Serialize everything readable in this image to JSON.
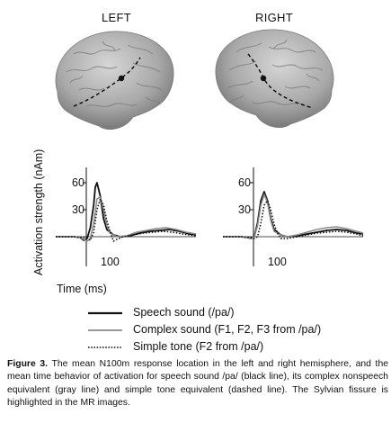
{
  "figure": {
    "hemispheres": [
      {
        "id": "left",
        "label": "LEFT",
        "y_tick_60": "60",
        "y_tick_30": "30",
        "x_tick": "100"
      },
      {
        "id": "right",
        "label": "RIGHT",
        "y_tick_60": "60",
        "y_tick_30": "30",
        "x_tick": "100"
      }
    ],
    "ylabel": "Activation strength (nAm)",
    "xlabel": "Time (ms)",
    "legend": [
      {
        "label": "Speech sound (/pa/)",
        "style": "solid",
        "color": "#111111"
      },
      {
        "label": "Complex sound (F1, F2, F3 from /pa/)",
        "style": "solid",
        "color": "#8a8a8a"
      },
      {
        "label": "Simple tone (F2 from /pa/)",
        "style": "dotted",
        "color": "#111111"
      }
    ]
  },
  "caption": {
    "label": "Figure 3.",
    "text": "The mean N100m response location in the left and right hemisphere, and the mean time behavior of activation for speech sound /pa/ (black line), its complex nonspeech equivalent (gray line) and simple tone equivalent (dashed line). The Sylvian fissure is highlighted in the MR images."
  },
  "chart_data": [
    {
      "type": "line",
      "title": "LEFT",
      "xlabel": "Time (ms)",
      "ylabel": "Activation strength (nAm)",
      "x_ticks": [
        100
      ],
      "y_ticks": [
        30,
        60
      ],
      "xlim": [
        -25,
        400
      ],
      "ylim": [
        -15,
        80
      ],
      "series": [
        {
          "name": "Speech sound (/pa/)",
          "color": "#111111",
          "style": "solid",
          "x": [
            -25,
            0,
            30,
            50,
            60,
            70,
            80,
            90,
            95,
            100,
            110,
            120,
            130,
            150,
            170,
            200,
            230,
            260,
            290,
            320,
            350,
            380,
            400
          ],
          "y": [
            0,
            0,
            0,
            -1,
            -4,
            -2,
            10,
            35,
            55,
            60,
            45,
            20,
            8,
            2,
            0,
            1,
            4,
            6,
            7,
            8,
            6,
            3,
            2
          ]
        },
        {
          "name": "Complex sound (F1, F2, F3 from /pa/)",
          "color": "#8a8a8a",
          "style": "solid",
          "x": [
            -25,
            0,
            30,
            50,
            60,
            70,
            80,
            90,
            100,
            110,
            120,
            130,
            140,
            160,
            190,
            220,
            250,
            280,
            310,
            340,
            370,
            400
          ],
          "y": [
            0,
            0,
            0,
            -1,
            -3,
            -5,
            -2,
            15,
            42,
            44,
            30,
            12,
            4,
            0,
            1,
            5,
            7,
            9,
            10,
            8,
            5,
            3
          ]
        },
        {
          "name": "Simple tone (F2 from /pa/)",
          "color": "#111111",
          "style": "dotted",
          "x": [
            -25,
            0,
            30,
            60,
            70,
            80,
            90,
            100,
            110,
            120,
            130,
            140,
            150,
            160,
            180,
            210,
            240,
            270,
            300,
            330,
            360,
            400
          ],
          "y": [
            0,
            0,
            0,
            -1,
            -2,
            -4,
            5,
            30,
            42,
            35,
            18,
            5,
            -5,
            -3,
            0,
            2,
            4,
            5,
            6,
            5,
            3,
            1
          ]
        }
      ]
    },
    {
      "type": "line",
      "title": "RIGHT",
      "xlabel": "Time (ms)",
      "ylabel": "Activation strength (nAm)",
      "x_ticks": [
        100
      ],
      "y_ticks": [
        30,
        60
      ],
      "xlim": [
        -25,
        400
      ],
      "ylim": [
        -15,
        80
      ],
      "series": [
        {
          "name": "Speech sound (/pa/)",
          "color": "#111111",
          "style": "solid",
          "x": [
            -25,
            0,
            30,
            50,
            60,
            70,
            80,
            90,
            100,
            110,
            120,
            130,
            150,
            170,
            200,
            230,
            260,
            290,
            320,
            350,
            380,
            400
          ],
          "y": [
            0,
            0,
            0,
            -1,
            -2,
            0,
            15,
            40,
            50,
            40,
            20,
            8,
            2,
            0,
            1,
            3,
            5,
            7,
            8,
            7,
            4,
            3
          ]
        },
        {
          "name": "Complex sound (F1, F2, F3 from /pa/)",
          "color": "#8a8a8a",
          "style": "solid",
          "x": [
            -25,
            0,
            30,
            50,
            60,
            70,
            80,
            90,
            100,
            110,
            120,
            130,
            150,
            170,
            200,
            230,
            260,
            290,
            320,
            350,
            380,
            400
          ],
          "y": [
            0,
            0,
            0,
            -1,
            -2,
            0,
            12,
            35,
            47,
            38,
            18,
            6,
            2,
            0,
            2,
            5,
            8,
            10,
            11,
            9,
            6,
            4
          ]
        },
        {
          "name": "Simple tone (F2 from /pa/)",
          "color": "#111111",
          "style": "dotted",
          "x": [
            -25,
            0,
            30,
            60,
            70,
            80,
            90,
            100,
            110,
            120,
            130,
            140,
            150,
            170,
            200,
            230,
            260,
            290,
            320,
            350,
            380,
            400
          ],
          "y": [
            0,
            0,
            0,
            -1,
            -2,
            0,
            15,
            35,
            40,
            30,
            14,
            4,
            -2,
            -2,
            0,
            2,
            4,
            5,
            6,
            5,
            3,
            1
          ]
        }
      ]
    }
  ]
}
